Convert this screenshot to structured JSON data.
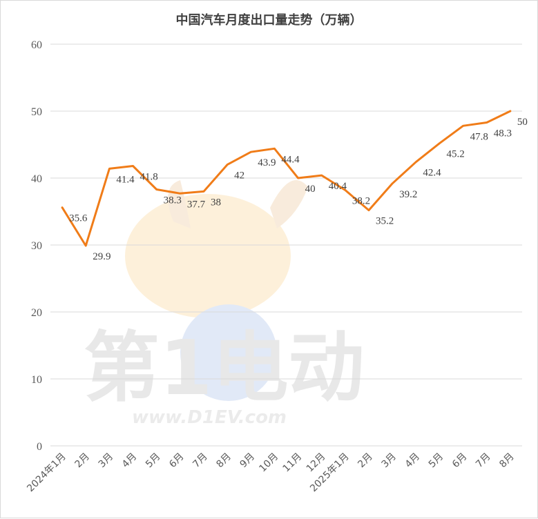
{
  "chart_data": {
    "type": "line",
    "title": "中国汽车月度出口量走势（万辆）",
    "categories": [
      "2024年1月",
      "2月",
      "3月",
      "4月",
      "5月",
      "6月",
      "7月",
      "8月",
      "9月",
      "10月",
      "11月",
      "12月",
      "2025年1月",
      "2月",
      "3月",
      "4月",
      "5月",
      "6月",
      "7月",
      "8月"
    ],
    "values": [
      35.6,
      29.9,
      41.4,
      41.8,
      38.3,
      37.7,
      38,
      42,
      43.9,
      44.4,
      40,
      40.4,
      38.2,
      35.2,
      39.2,
      42.4,
      45.2,
      47.8,
      48.3,
      50
    ],
    "ylim": [
      0,
      60
    ],
    "yticks": [
      0,
      10,
      20,
      30,
      40,
      50,
      60
    ],
    "grid": true,
    "line_color": "#F07C18",
    "gridline_color": "#d9d9d9",
    "text_color": "#595959"
  },
  "watermark": {
    "brand_text": "第1电动",
    "url_text": "www.D1EV.com"
  }
}
